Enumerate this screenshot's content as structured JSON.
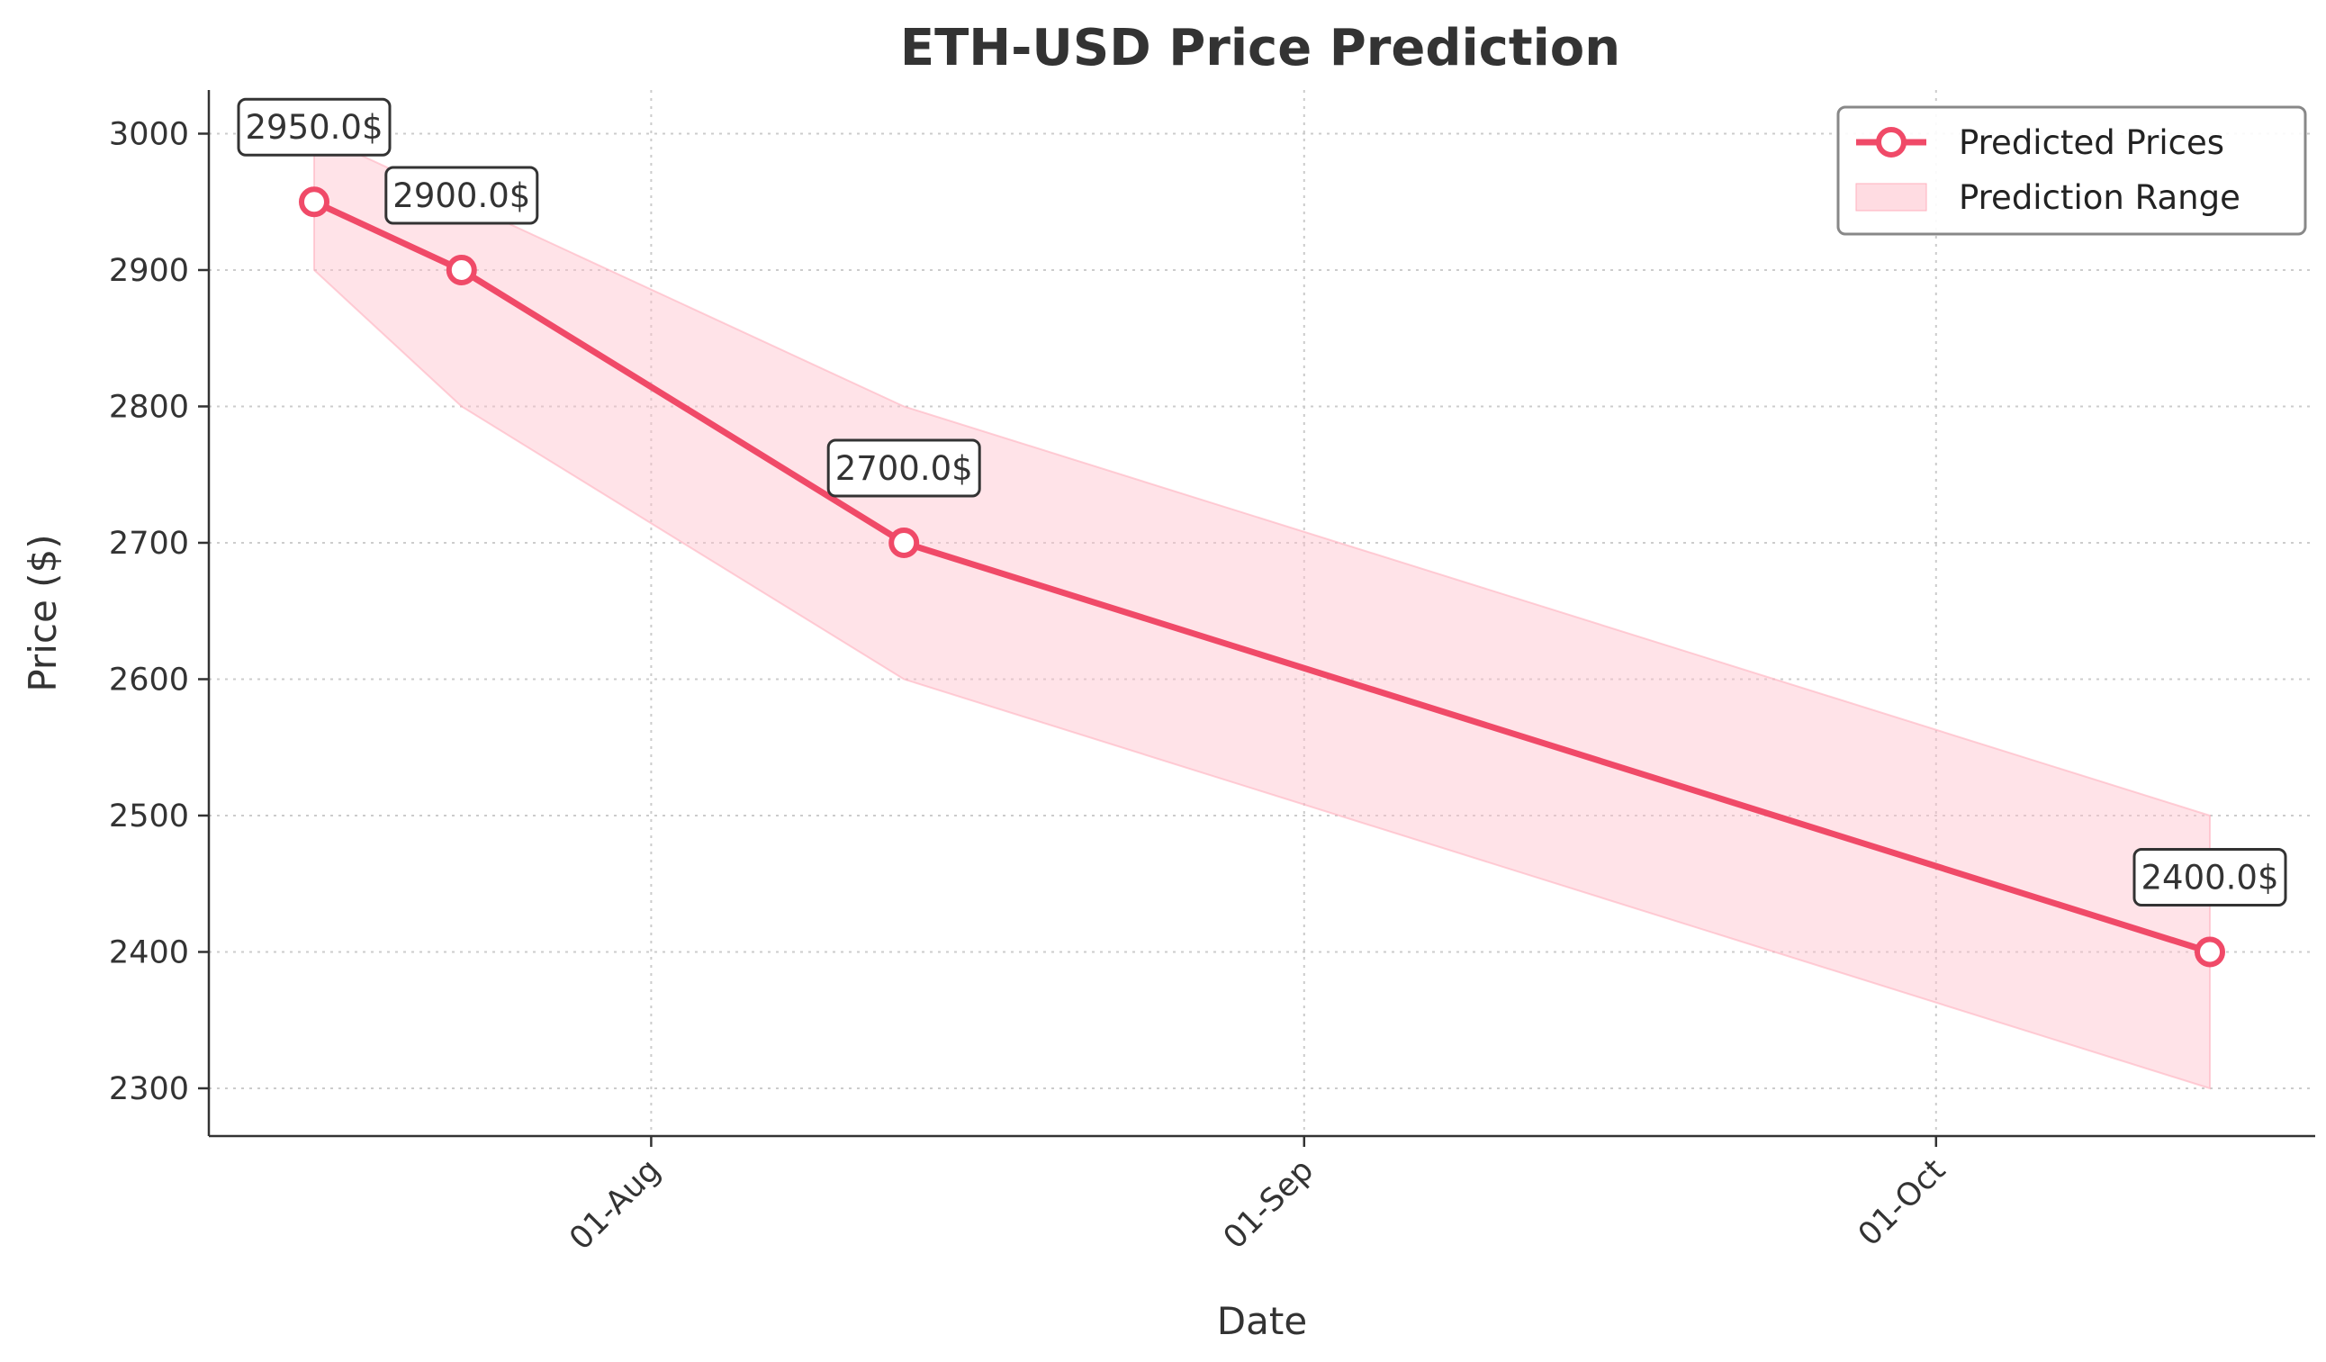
{
  "chart_data": {
    "type": "line",
    "title": "ETH-USD Price Prediction",
    "xlabel": "Date",
    "ylabel": "Price ($)",
    "x": [
      "2024-07-16",
      "2024-07-23",
      "2024-08-13",
      "2024-10-14"
    ],
    "x_ticks": [
      {
        "date": "2024-08-01",
        "label": "01-Aug"
      },
      {
        "date": "2024-09-01",
        "label": "01-Sep"
      },
      {
        "date": "2024-10-01",
        "label": "01-Oct"
      }
    ],
    "y_ticks": [
      2300,
      2400,
      2500,
      2600,
      2700,
      2800,
      2900,
      3000
    ],
    "ylim": [
      2265,
      3032
    ],
    "xlim": [
      "2024-07-11",
      "2024-10-19"
    ],
    "series": [
      {
        "name": "Predicted Prices",
        "values": [
          2950,
          2900,
          2700,
          2400
        ],
        "color": "#f04a68"
      }
    ],
    "range": {
      "name": "Prediction Range",
      "lower": [
        2900,
        2800,
        2600,
        2300
      ],
      "upper": [
        3000,
        2950,
        2800,
        2500
      ],
      "color": "#ffc0cb"
    },
    "annotations": [
      "2950.0$",
      "2900.0$",
      "2700.0$",
      "2400.0$"
    ],
    "grid": true,
    "legend_position": "top-right"
  }
}
